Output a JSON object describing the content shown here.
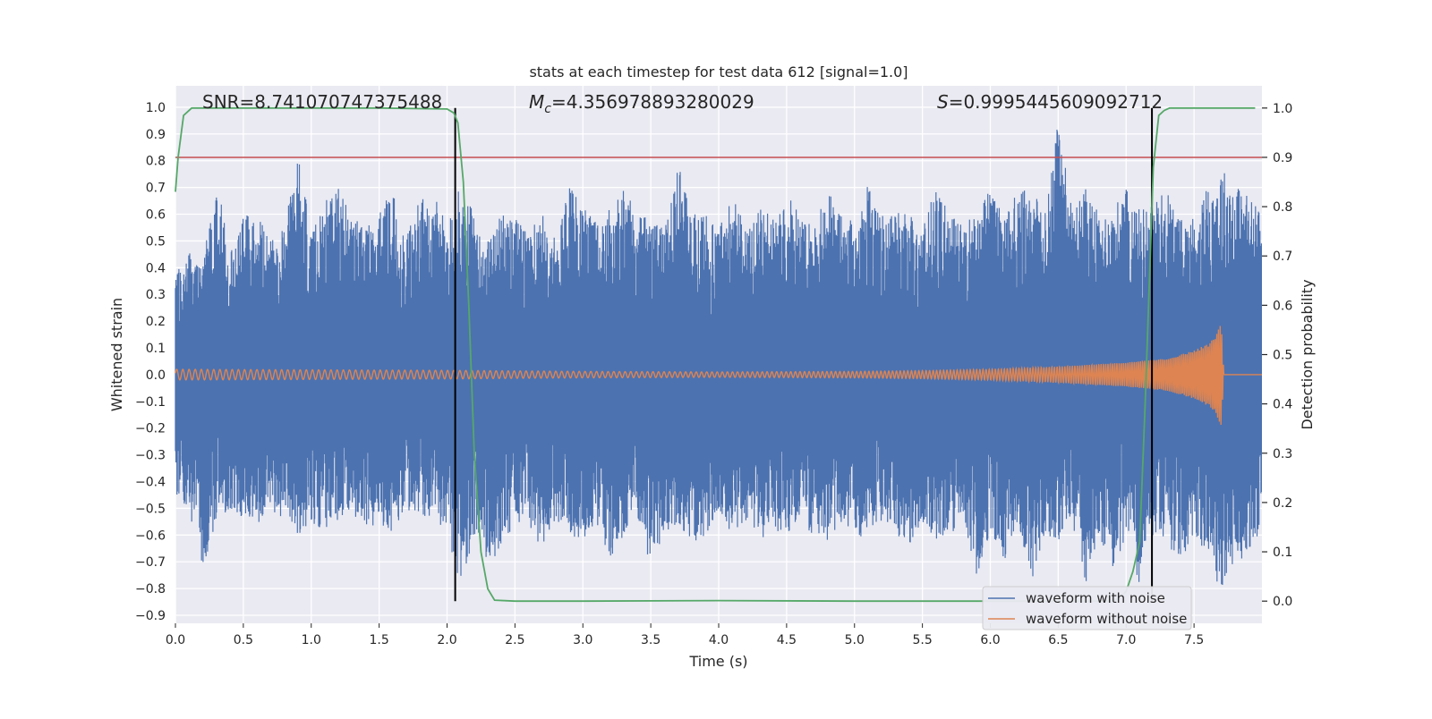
{
  "chart_data": {
    "type": "line",
    "title": "stats at each timestep for test data 612 [signal=1.0]",
    "xlabel": "Time (s)",
    "ylabel": "Whitened strain",
    "y2label": "Detection probability",
    "xlim": [
      0.0,
      8.0
    ],
    "ylim": [
      -0.93,
      1.08
    ],
    "y2lim": [
      -0.045,
      1.045
    ],
    "x_ticks": [
      0.0,
      0.5,
      1.0,
      1.5,
      2.0,
      2.5,
      3.0,
      3.5,
      4.0,
      4.5,
      5.0,
      5.5,
      6.0,
      6.5,
      7.0,
      7.5
    ],
    "x_tick_labels": [
      "0.0",
      "0.5",
      "1.0",
      "1.5",
      "2.0",
      "2.5",
      "3.0",
      "3.5",
      "4.0",
      "4.5",
      "5.0",
      "5.5",
      "6.0",
      "6.5",
      "7.0",
      "7.5"
    ],
    "y_ticks": [
      1.0,
      0.9,
      0.8,
      0.7,
      0.6,
      0.5,
      0.4,
      0.3,
      0.2,
      0.1,
      0.0,
      -0.1,
      -0.2,
      -0.3,
      -0.4,
      -0.5,
      -0.6,
      -0.7,
      -0.8,
      -0.9
    ],
    "y_tick_labels": [
      "1.0",
      "0.9",
      "0.8",
      "0.7",
      "0.6",
      "0.5",
      "0.4",
      "0.3",
      "0.2",
      "0.1",
      "0.0",
      "−0.1",
      "−0.2",
      "−0.3",
      "−0.4",
      "−0.5",
      "−0.6",
      "−0.7",
      "−0.8",
      "−0.9"
    ],
    "y2_ticks": [
      1.0,
      0.9,
      0.8,
      0.7,
      0.6,
      0.5,
      0.4,
      0.3,
      0.2,
      0.1,
      0.0
    ],
    "y2_tick_labels": [
      "1.0",
      "0.9",
      "0.8",
      "0.7",
      "0.6",
      "0.5",
      "0.4",
      "0.3",
      "0.2",
      "0.1",
      "0.0"
    ],
    "grid": true,
    "legend_position": "lower-right",
    "annotations": {
      "snr": "SNR=8.741070747375488",
      "mc_symbol": "M",
      "mc_sub": "c",
      "mc_value": "=4.356978893280029",
      "s_symbol": "S",
      "s_value": "=0.9995445609092712"
    },
    "series": [
      {
        "name": "waveform with noise",
        "color": "#4c72b0",
        "axis": "left",
        "envelope_upper": [
          0.42,
          0.46,
          0.4,
          0.76,
          0.45,
          0.6,
          0.62,
          0.5,
          0.55,
          0.88,
          0.52,
          0.65,
          0.7,
          0.6,
          0.58,
          0.62,
          0.7,
          0.55,
          0.65,
          0.7,
          0.55,
          0.72,
          0.6,
          0.5,
          0.6,
          0.6,
          0.52,
          0.62,
          0.5,
          0.7,
          0.65,
          0.6,
          0.62,
          0.72,
          0.6,
          0.58,
          0.55,
          0.79,
          0.6,
          0.6,
          0.55,
          0.7,
          0.55,
          0.62,
          0.6,
          0.68,
          0.6,
          0.55,
          0.7,
          0.6,
          0.58,
          0.72,
          0.6,
          0.6,
          0.62,
          0.55,
          0.7,
          0.6,
          0.58,
          0.6,
          0.7,
          0.6,
          0.68,
          0.7,
          0.6,
          1.0,
          0.62,
          0.7,
          0.6,
          0.62,
          0.7,
          0.62,
          0.65,
          0.7,
          0.58,
          0.6,
          0.7,
          0.78,
          0.72,
          0.68,
          0.6
        ],
        "envelope_lower": [
          -0.45,
          -0.5,
          -0.76,
          -0.55,
          -0.5,
          -0.55,
          -0.6,
          -0.5,
          -0.55,
          -0.6,
          -0.55,
          -0.6,
          -0.55,
          -0.5,
          -0.62,
          -0.55,
          -0.6,
          -0.5,
          -0.55,
          -0.52,
          -0.6,
          -0.8,
          -0.6,
          -0.7,
          -0.68,
          -0.55,
          -0.6,
          -0.65,
          -0.55,
          -0.6,
          -0.62,
          -0.55,
          -0.7,
          -0.6,
          -0.55,
          -0.72,
          -0.6,
          -0.55,
          -0.65,
          -0.6,
          -0.52,
          -0.6,
          -0.55,
          -0.62,
          -0.58,
          -0.6,
          -0.55,
          -0.6,
          -0.62,
          -0.55,
          -0.6,
          -0.62,
          -0.55,
          -0.6,
          -0.65,
          -0.55,
          -0.62,
          -0.6,
          -0.55,
          -0.75,
          -0.6,
          -0.7,
          -0.55,
          -0.78,
          -0.6,
          -0.62,
          -0.55,
          -0.8,
          -0.6,
          -0.72,
          -0.62,
          -0.8,
          -0.6,
          -0.65,
          -0.7,
          -0.6,
          -0.68,
          -0.82,
          -0.7,
          -0.68,
          -0.6
        ]
      },
      {
        "name": "waveform without noise",
        "color": "#dd8452",
        "axis": "left",
        "amp_profile_x": [
          0.0,
          1.0,
          2.0,
          3.0,
          4.0,
          5.0,
          5.5,
          6.0,
          6.5,
          7.0,
          7.3,
          7.5,
          7.62,
          7.67,
          7.7,
          7.72,
          8.0
        ],
        "amp_profile_y": [
          0.02,
          0.018,
          0.016,
          0.012,
          0.01,
          0.012,
          0.015,
          0.02,
          0.03,
          0.045,
          0.06,
          0.09,
          0.12,
          0.16,
          0.19,
          0.0,
          0.0
        ]
      },
      {
        "name": "Detection probability",
        "color": "#55a868",
        "axis": "right",
        "x": [
          0.0,
          0.02,
          0.06,
          0.12,
          0.3,
          1.0,
          1.5,
          2.0,
          2.05,
          2.08,
          2.12,
          2.16,
          2.2,
          2.25,
          2.3,
          2.35,
          2.5,
          3.0,
          4.0,
          5.0,
          6.0,
          6.8,
          6.9,
          6.95,
          7.0,
          7.05,
          7.1,
          7.14,
          7.18,
          7.2,
          7.24,
          7.28,
          7.32,
          7.36,
          7.45,
          7.6,
          7.8,
          7.95
        ],
        "y": [
          0.83,
          0.9,
          0.985,
          1.0,
          1.0,
          1.0,
          1.0,
          0.998,
          0.99,
          0.97,
          0.85,
          0.6,
          0.3,
          0.1,
          0.025,
          0.002,
          0.0,
          0.0,
          0.001,
          0.0,
          0.0,
          0.0,
          0.0,
          0.005,
          0.02,
          0.06,
          0.12,
          0.4,
          0.72,
          0.88,
          0.985,
          0.995,
          1.0,
          1.0,
          1.0,
          1.0,
          1.0,
          1.0
        ]
      }
    ],
    "threshold": {
      "axis": "right",
      "value": 0.9,
      "color": "#c44e52"
    },
    "vlines": {
      "x": [
        2.06,
        7.19
      ],
      "color": "#000000",
      "y2_range": [
        0.0,
        1.0
      ]
    }
  }
}
